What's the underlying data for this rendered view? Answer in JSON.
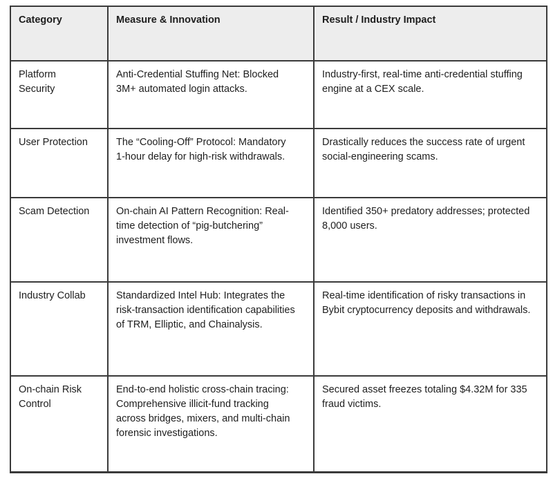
{
  "colors": {
    "page-bg": "#ffffff",
    "header-bg": "#ededed",
    "border": "#3a3a3a",
    "text": "#1e1e1e"
  },
  "table": {
    "headers": {
      "category": "Category",
      "measure": "Measure & Innovation",
      "result": "Result / Industry Impact"
    },
    "rows": [
      {
        "category": "Platform Security",
        "measure": "Anti-Credential Stuffing Net: Blocked 3M+ automated login attacks.",
        "result": "Industry-first, real-time anti-credential stuffing engine at a CEX scale."
      },
      {
        "category": "User Protection",
        "measure": "The “Cooling-Off” Protocol: Mandatory 1-hour delay for high-risk withdrawals.",
        "result": "Drastically reduces the success rate of urgent social-engineering scams."
      },
      {
        "category": "Scam Detection",
        "measure": "On-chain AI Pattern Recognition: Real-time detection of “pig-butchering” investment flows.",
        "result": "Identified 350+ predatory addresses; protected 8,000 users."
      },
      {
        "category": "Industry Collab",
        "measure": "Standardized Intel Hub: Integrates the risk-transaction identification capabilities of TRM, Elliptic, and Chainalysis.",
        "result": "Real-time identification of risky transactions in Bybit cryptocurrency deposits and withdrawals."
      },
      {
        "category": "On-chain Risk Control",
        "measure": "End-to-end holistic cross-chain tracing:  Comprehensive illicit-fund tracking across bridges, mixers, and multi-chain forensic investigations.",
        "result": "Secured asset freezes totaling $4.32M for 335 fraud victims."
      }
    ]
  }
}
